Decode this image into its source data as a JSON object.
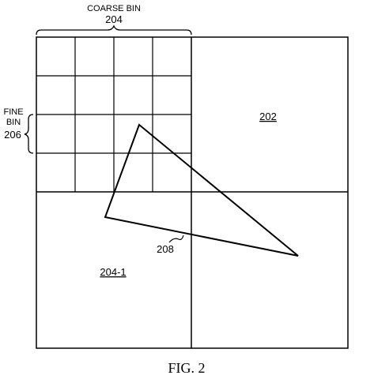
{
  "labels": {
    "coarse_bin_title": "COARSE BIN",
    "coarse_bin_number": "204",
    "fine_bin_line1": "FINE",
    "fine_bin_line2": "BIN",
    "fine_bin_number": "206",
    "bin_202": "202",
    "bin_204_1": "204-1",
    "triangle_ref": "208"
  },
  "caption": "FIG. 2"
}
